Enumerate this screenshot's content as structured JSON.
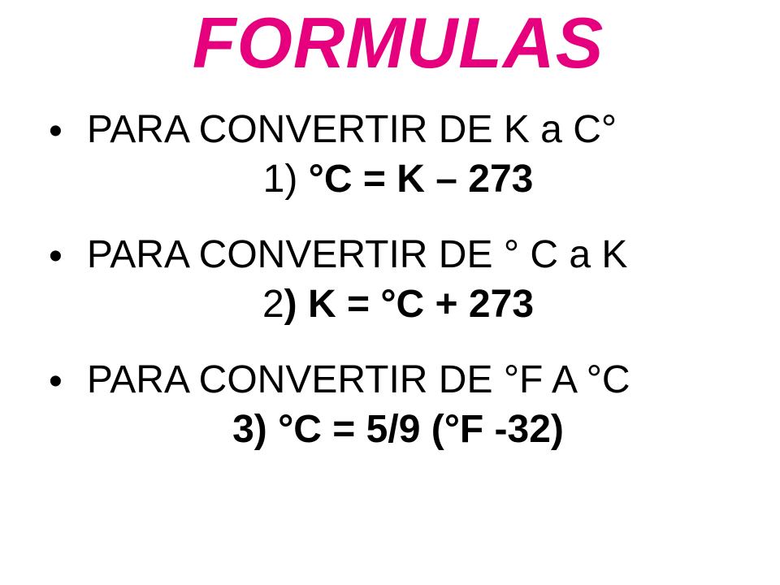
{
  "title": {
    "text": "FORMULAS",
    "color": "#e6007e",
    "fontSize": "88px"
  },
  "bodyFontSize": "48px",
  "bullets": {
    "b1": "PARA CONVERTIR DE K a C°",
    "b2": "PARA CONVERTIR DE ° C a K",
    "b3": "PARA CONVERTIR DE °F A °C"
  },
  "formulas": {
    "f1": {
      "num": "1)   ",
      "eq": "°C = K – 273"
    },
    "f2": {
      "num": "2",
      "eq": ") K = °C + 273"
    },
    "f3": {
      "num": "",
      "eq": "3) °C = 5/9 (°F -32)"
    }
  }
}
